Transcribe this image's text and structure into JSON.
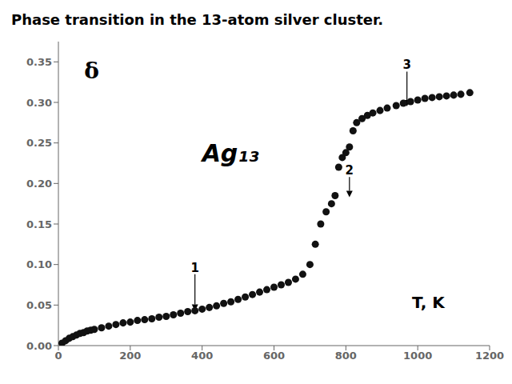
{
  "chart_data": {
    "type": "scatter",
    "title": "Phase transition in the 13-atom silver cluster.",
    "x": [
      10,
      20,
      30,
      40,
      50,
      60,
      70,
      80,
      90,
      100,
      120,
      140,
      160,
      180,
      200,
      220,
      240,
      260,
      280,
      300,
      320,
      340,
      360,
      380,
      400,
      420,
      440,
      460,
      480,
      500,
      520,
      540,
      560,
      580,
      600,
      620,
      640,
      660,
      680,
      700,
      715,
      730,
      745,
      760,
      770,
      780,
      790,
      800,
      810,
      820,
      830,
      845,
      860,
      875,
      895,
      915,
      940,
      960,
      980,
      1000,
      1020,
      1040,
      1060,
      1080,
      1100,
      1120,
      1145
    ],
    "values": [
      0.003,
      0.006,
      0.009,
      0.011,
      0.013,
      0.015,
      0.016,
      0.018,
      0.019,
      0.02,
      0.022,
      0.024,
      0.026,
      0.028,
      0.029,
      0.031,
      0.032,
      0.033,
      0.035,
      0.036,
      0.038,
      0.04,
      0.042,
      0.043,
      0.045,
      0.047,
      0.049,
      0.052,
      0.054,
      0.057,
      0.06,
      0.063,
      0.066,
      0.069,
      0.072,
      0.075,
      0.078,
      0.082,
      0.088,
      0.1,
      0.125,
      0.15,
      0.165,
      0.175,
      0.185,
      0.22,
      0.232,
      0.238,
      0.245,
      0.265,
      0.275,
      0.28,
      0.284,
      0.287,
      0.29,
      0.293,
      0.296,
      0.299,
      0.301,
      0.303,
      0.305,
      0.306,
      0.307,
      0.308,
      0.309,
      0.31,
      0.312
    ],
    "color": "#111111",
    "xlim": [
      0,
      1200
    ],
    "ylim": [
      0,
      0.375
    ],
    "xticks": [
      0,
      200,
      400,
      600,
      800,
      1000,
      1200
    ],
    "yticks": [
      {
        "value": 0,
        "label": "0.00"
      },
      0.05,
      {
        "value": 0.1,
        "label": "0.10"
      },
      0.15,
      {
        "value": 0.2,
        "label": "0.20"
      },
      0.25,
      {
        "value": 0.3,
        "label": "0.30"
      },
      0.35
    ],
    "annotations": [
      {
        "text": "δ"
      },
      {
        "text": "Ag₁₃",
        "x": 400,
        "y": 0.235
      },
      {
        "text": "T, K"
      },
      {
        "text": "1",
        "x": 380,
        "y": 0.088,
        "arrow_to": [
          380,
          0.043
        ]
      },
      {
        "text": "2",
        "x": 810,
        "y": 0.208,
        "arrow_to": [
          810,
          0.183
        ]
      },
      {
        "text": "3",
        "x": 970,
        "y": 0.338,
        "arrow_to": [
          970,
          0.295
        ]
      }
    ]
  }
}
